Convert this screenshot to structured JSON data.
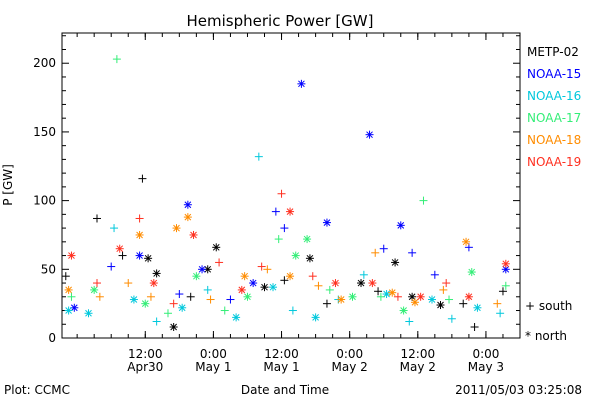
{
  "chart_data": {
    "type": "scatter",
    "title": "Hemispheric Power [GW]",
    "xlabel": "Date and Time",
    "ylabel": "P [GW]",
    "ylim": [
      0,
      222
    ],
    "xlim": [
      "2011-04-29 21:20",
      "2011-05-03 06:00"
    ],
    "y_ticks": [
      0,
      50,
      100,
      150,
      200
    ],
    "x_ticks": [
      {
        "t": "2011-04-30 12:00",
        "top": "12:00",
        "bottom": "Apr30"
      },
      {
        "t": "2011-05-01 00:00",
        "top": "0:00",
        "bottom": "May 1"
      },
      {
        "t": "2011-05-01 12:00",
        "top": "12:00",
        "bottom": "May 1"
      },
      {
        "t": "2011-05-02 00:00",
        "top": "0:00",
        "bottom": "May 2"
      },
      {
        "t": "2011-05-02 12:00",
        "top": "12:00",
        "bottom": "May 2"
      },
      {
        "t": "2011-05-03 00:00",
        "top": "0:00",
        "bottom": "May 3"
      }
    ],
    "legend_position": "right",
    "marker_legend": [
      {
        "symbol": "+",
        "label": "south"
      },
      {
        "symbol": "*",
        "label": "north"
      }
    ],
    "series": [
      {
        "name": "METP-02",
        "color": "#000000",
        "points": [
          [
            "2011-04-29 22:00",
            45,
            "+"
          ],
          [
            "2011-04-30 03:30",
            87,
            "+"
          ],
          [
            "2011-04-30 08:00",
            60,
            "+"
          ],
          [
            "2011-04-30 11:30",
            116,
            "+"
          ],
          [
            "2011-04-30 12:30",
            58,
            "*"
          ],
          [
            "2011-04-30 14:00",
            47,
            "*"
          ],
          [
            "2011-04-30 17:00",
            8,
            "*"
          ],
          [
            "2011-04-30 20:00",
            30,
            "+"
          ],
          [
            "2011-04-30 23:00",
            50,
            "*"
          ],
          [
            "2011-05-01 00:30",
            66,
            "*"
          ],
          [
            "2011-05-01 09:00",
            37,
            "*"
          ],
          [
            "2011-05-01 12:30",
            42,
            "+"
          ],
          [
            "2011-05-01 17:00",
            58,
            "*"
          ],
          [
            "2011-05-01 20:00",
            25,
            "+"
          ],
          [
            "2011-05-02 02:00",
            40,
            "*"
          ],
          [
            "2011-05-02 05:00",
            34,
            "+"
          ],
          [
            "2011-05-02 08:00",
            55,
            "*"
          ],
          [
            "2011-05-02 11:00",
            30,
            "*"
          ],
          [
            "2011-05-02 16:00",
            24,
            "*"
          ],
          [
            "2011-05-02 20:00",
            25,
            "+"
          ],
          [
            "2011-05-02 22:00",
            8,
            "+"
          ],
          [
            "2011-05-03 03:00",
            34,
            "+"
          ]
        ]
      },
      {
        "name": "NOAA-15",
        "color": "#0000ff",
        "points": [
          [
            "2011-04-29 23:30",
            22,
            "*"
          ],
          [
            "2011-04-30 06:00",
            52,
            "+"
          ],
          [
            "2011-04-30 11:00",
            60,
            "*"
          ],
          [
            "2011-04-30 18:00",
            32,
            "+"
          ],
          [
            "2011-04-30 19:30",
            97,
            "*"
          ],
          [
            "2011-04-30 22:00",
            50,
            "*"
          ],
          [
            "2011-05-01 03:00",
            28,
            "+"
          ],
          [
            "2011-05-01 07:00",
            40,
            "*"
          ],
          [
            "2011-05-01 11:00",
            92,
            "+"
          ],
          [
            "2011-05-01 12:30",
            80,
            "+"
          ],
          [
            "2011-05-01 15:30",
            185,
            "*"
          ],
          [
            "2011-05-01 20:00",
            84,
            "*"
          ],
          [
            "2011-05-02 03:30",
            148,
            "*"
          ],
          [
            "2011-05-02 06:00",
            65,
            "+"
          ],
          [
            "2011-05-02 09:00",
            82,
            "*"
          ],
          [
            "2011-05-02 11:00",
            62,
            "+"
          ],
          [
            "2011-05-02 15:00",
            46,
            "+"
          ],
          [
            "2011-05-02 21:00",
            66,
            "+"
          ],
          [
            "2011-05-03 03:30",
            50,
            "*"
          ]
        ]
      },
      {
        "name": "NOAA-16",
        "color": "#00c8dc",
        "points": [
          [
            "2011-04-29 22:30",
            20,
            "*"
          ],
          [
            "2011-04-30 02:00",
            18,
            "*"
          ],
          [
            "2011-04-30 06:30",
            80,
            "+"
          ],
          [
            "2011-04-30 10:00",
            28,
            "*"
          ],
          [
            "2011-04-30 14:00",
            12,
            "+"
          ],
          [
            "2011-04-30 18:30",
            22,
            "*"
          ],
          [
            "2011-04-30 23:00",
            35,
            "+"
          ],
          [
            "2011-05-01 04:00",
            15,
            "*"
          ],
          [
            "2011-05-01 08:00",
            132,
            "+"
          ],
          [
            "2011-05-01 10:30",
            37,
            "*"
          ],
          [
            "2011-05-01 14:00",
            20,
            "+"
          ],
          [
            "2011-05-01 18:00",
            15,
            "*"
          ],
          [
            "2011-05-01 22:00",
            28,
            "+"
          ],
          [
            "2011-05-02 02:30",
            46,
            "+"
          ],
          [
            "2011-05-02 06:30",
            32,
            "*"
          ],
          [
            "2011-05-02 10:30",
            12,
            "+"
          ],
          [
            "2011-05-02 14:30",
            28,
            "*"
          ],
          [
            "2011-05-02 18:00",
            14,
            "+"
          ],
          [
            "2011-05-02 22:30",
            22,
            "*"
          ],
          [
            "2011-05-03 02:30",
            18,
            "+"
          ]
        ]
      },
      {
        "name": "NOAA-17",
        "color": "#33ee77",
        "points": [
          [
            "2011-04-29 23:00",
            30,
            "+"
          ],
          [
            "2011-04-30 03:00",
            35,
            "*"
          ],
          [
            "2011-04-30 07:00",
            203,
            "+"
          ],
          [
            "2011-04-30 12:00",
            25,
            "*"
          ],
          [
            "2011-04-30 16:00",
            18,
            "+"
          ],
          [
            "2011-04-30 21:00",
            45,
            "*"
          ],
          [
            "2011-05-01 02:00",
            20,
            "+"
          ],
          [
            "2011-05-01 06:00",
            30,
            "*"
          ],
          [
            "2011-05-01 11:30",
            72,
            "+"
          ],
          [
            "2011-05-01 14:30",
            60,
            "*"
          ],
          [
            "2011-05-01 16:30",
            72,
            "*"
          ],
          [
            "2011-05-01 20:30",
            35,
            "+"
          ],
          [
            "2011-05-02 00:30",
            30,
            "*"
          ],
          [
            "2011-05-02 05:30",
            30,
            "+"
          ],
          [
            "2011-05-02 09:30",
            20,
            "*"
          ],
          [
            "2011-05-02 13:00",
            100,
            "+"
          ],
          [
            "2011-05-02 17:30",
            28,
            "+"
          ],
          [
            "2011-05-02 21:30",
            48,
            "*"
          ],
          [
            "2011-05-03 03:30",
            38,
            "+"
          ]
        ]
      },
      {
        "name": "NOAA-18",
        "color": "#ff8c00",
        "points": [
          [
            "2011-04-29 22:30",
            35,
            "*"
          ],
          [
            "2011-04-30 04:00",
            30,
            "+"
          ],
          [
            "2011-04-30 09:00",
            40,
            "+"
          ],
          [
            "2011-04-30 11:00",
            75,
            "*"
          ],
          [
            "2011-04-30 13:00",
            30,
            "+"
          ],
          [
            "2011-04-30 17:30",
            80,
            "*"
          ],
          [
            "2011-04-30 19:30",
            88,
            "*"
          ],
          [
            "2011-04-30 23:30",
            28,
            "+"
          ],
          [
            "2011-05-01 05:30",
            45,
            "*"
          ],
          [
            "2011-05-01 09:30",
            50,
            "+"
          ],
          [
            "2011-05-01 13:30",
            45,
            "*"
          ],
          [
            "2011-05-01 18:30",
            38,
            "+"
          ],
          [
            "2011-05-01 22:30",
            28,
            "*"
          ],
          [
            "2011-05-02 04:30",
            62,
            "+"
          ],
          [
            "2011-05-02 07:30",
            33,
            "*"
          ],
          [
            "2011-05-02 11:30",
            26,
            "*"
          ],
          [
            "2011-05-02 16:30",
            35,
            "+"
          ],
          [
            "2011-05-02 20:30",
            70,
            "*"
          ],
          [
            "2011-05-03 02:00",
            25,
            "+"
          ]
        ]
      },
      {
        "name": "NOAA-19",
        "color": "#ff3020",
        "points": [
          [
            "2011-04-29 23:00",
            60,
            "*"
          ],
          [
            "2011-04-30 03:30",
            40,
            "+"
          ],
          [
            "2011-04-30 07:30",
            65,
            "*"
          ],
          [
            "2011-04-30 11:00",
            87,
            "+"
          ],
          [
            "2011-04-30 13:30",
            40,
            "*"
          ],
          [
            "2011-04-30 17:00",
            25,
            "+"
          ],
          [
            "2011-04-30 20:30",
            75,
            "*"
          ],
          [
            "2011-05-01 01:00",
            55,
            "+"
          ],
          [
            "2011-05-01 05:00",
            35,
            "*"
          ],
          [
            "2011-05-01 08:30",
            52,
            "+"
          ],
          [
            "2011-05-01 12:00",
            105,
            "+"
          ],
          [
            "2011-05-01 13:30",
            92,
            "*"
          ],
          [
            "2011-05-01 17:30",
            45,
            "+"
          ],
          [
            "2011-05-01 21:30",
            40,
            "*"
          ],
          [
            "2011-05-02 04:00",
            40,
            "*"
          ],
          [
            "2011-05-02 08:30",
            30,
            "+"
          ],
          [
            "2011-05-02 12:30",
            30,
            "*"
          ],
          [
            "2011-05-02 17:00",
            40,
            "+"
          ],
          [
            "2011-05-02 21:00",
            30,
            "*"
          ],
          [
            "2011-05-03 03:30",
            54,
            "*"
          ]
        ]
      }
    ]
  },
  "footer": {
    "plot_label": "Plot: CCMC",
    "timestamp": "2011/05/03 03:25:08"
  }
}
